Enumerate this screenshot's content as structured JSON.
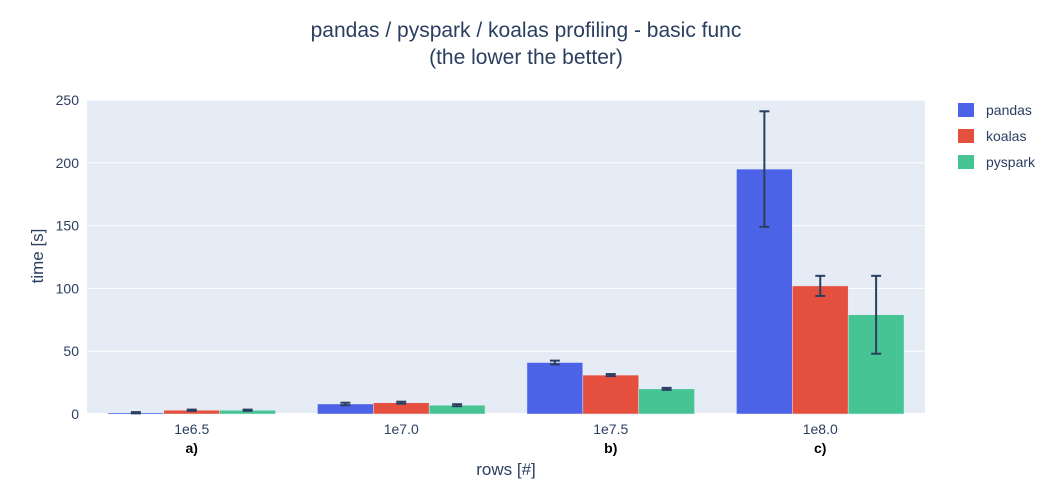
{
  "chart_data": {
    "type": "bar",
    "title": "pandas / pyspark / koalas profiling - basic func",
    "subtitle": "(the lower the better)",
    "xlabel": "rows [#]",
    "ylabel": "time [s]",
    "ylim": [
      0,
      250
    ],
    "yticks": [
      0,
      50,
      100,
      150,
      200,
      250
    ],
    "categories": [
      "1e6.5",
      "1e7.0",
      "1e7.5",
      "1e8.0"
    ],
    "annotations": [
      "a)",
      "",
      "b)",
      "c)"
    ],
    "grid": true,
    "legend_position": "top-right",
    "series": [
      {
        "name": "pandas",
        "color": "#4c63e8",
        "values": [
          1,
          8,
          41,
          195
        ],
        "errors": [
          0.5,
          1,
          1.5,
          46
        ]
      },
      {
        "name": "koalas",
        "color": "#e5503e",
        "values": [
          3,
          9,
          31,
          102
        ],
        "errors": [
          0.5,
          0.8,
          0.8,
          8
        ]
      },
      {
        "name": "pyspark",
        "color": "#46c494",
        "values": [
          3,
          7,
          20,
          79
        ],
        "errors": [
          0.5,
          0.8,
          0.8,
          31
        ]
      }
    ]
  }
}
